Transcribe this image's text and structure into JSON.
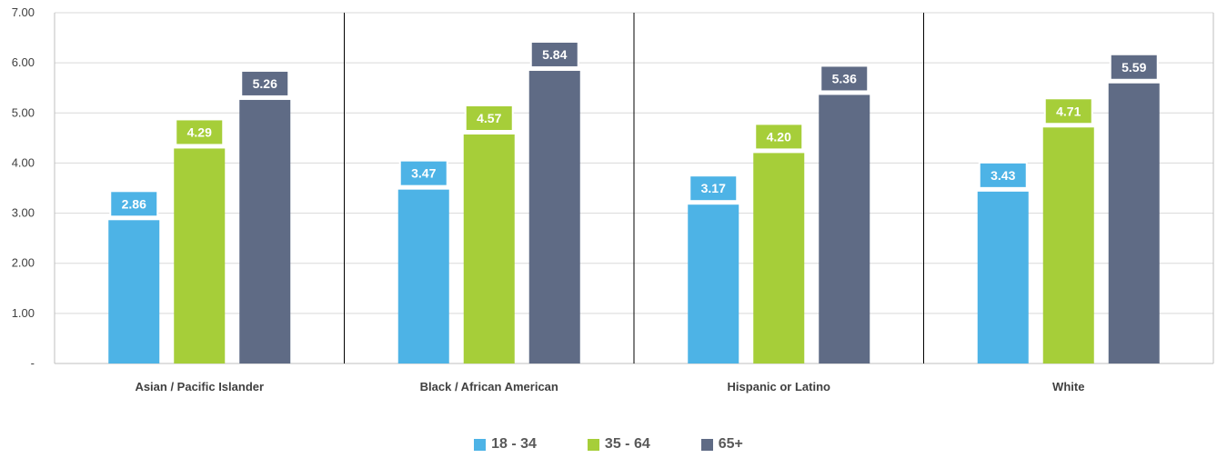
{
  "chart_data": {
    "type": "bar",
    "categories": [
      "Asian / Pacific Islander",
      "Black / African American",
      "Hispanic or Latino",
      "White"
    ],
    "series": [
      {
        "name": "18 - 34",
        "values": [
          2.86,
          3.47,
          3.17,
          3.43
        ],
        "labels": [
          "2.86",
          "3.47",
          "3.17",
          "3.43"
        ],
        "color": "#4db3e6"
      },
      {
        "name": "35 - 64",
        "values": [
          4.29,
          4.57,
          4.2,
          4.71
        ],
        "labels": [
          "4.29",
          "4.57",
          "4.20",
          "4.71"
        ],
        "color": "#a6ce39"
      },
      {
        "name": "65+",
        "values": [
          5.26,
          5.84,
          5.36,
          5.59
        ],
        "labels": [
          "5.26",
          "5.84",
          "5.36",
          "5.59"
        ],
        "color": "#5f6b85"
      }
    ],
    "yticks": [
      {
        "value": 0,
        "label": "-"
      },
      {
        "value": 1,
        "label": "1.00"
      },
      {
        "value": 2,
        "label": "2.00"
      },
      {
        "value": 3,
        "label": "3.00"
      },
      {
        "value": 4,
        "label": "4.00"
      },
      {
        "value": 5,
        "label": "5.00"
      },
      {
        "value": 6,
        "label": "6.00"
      },
      {
        "value": 7,
        "label": "7.00"
      }
    ],
    "ylim": [
      0,
      7
    ],
    "grid": true,
    "legend_position": "bottom"
  }
}
